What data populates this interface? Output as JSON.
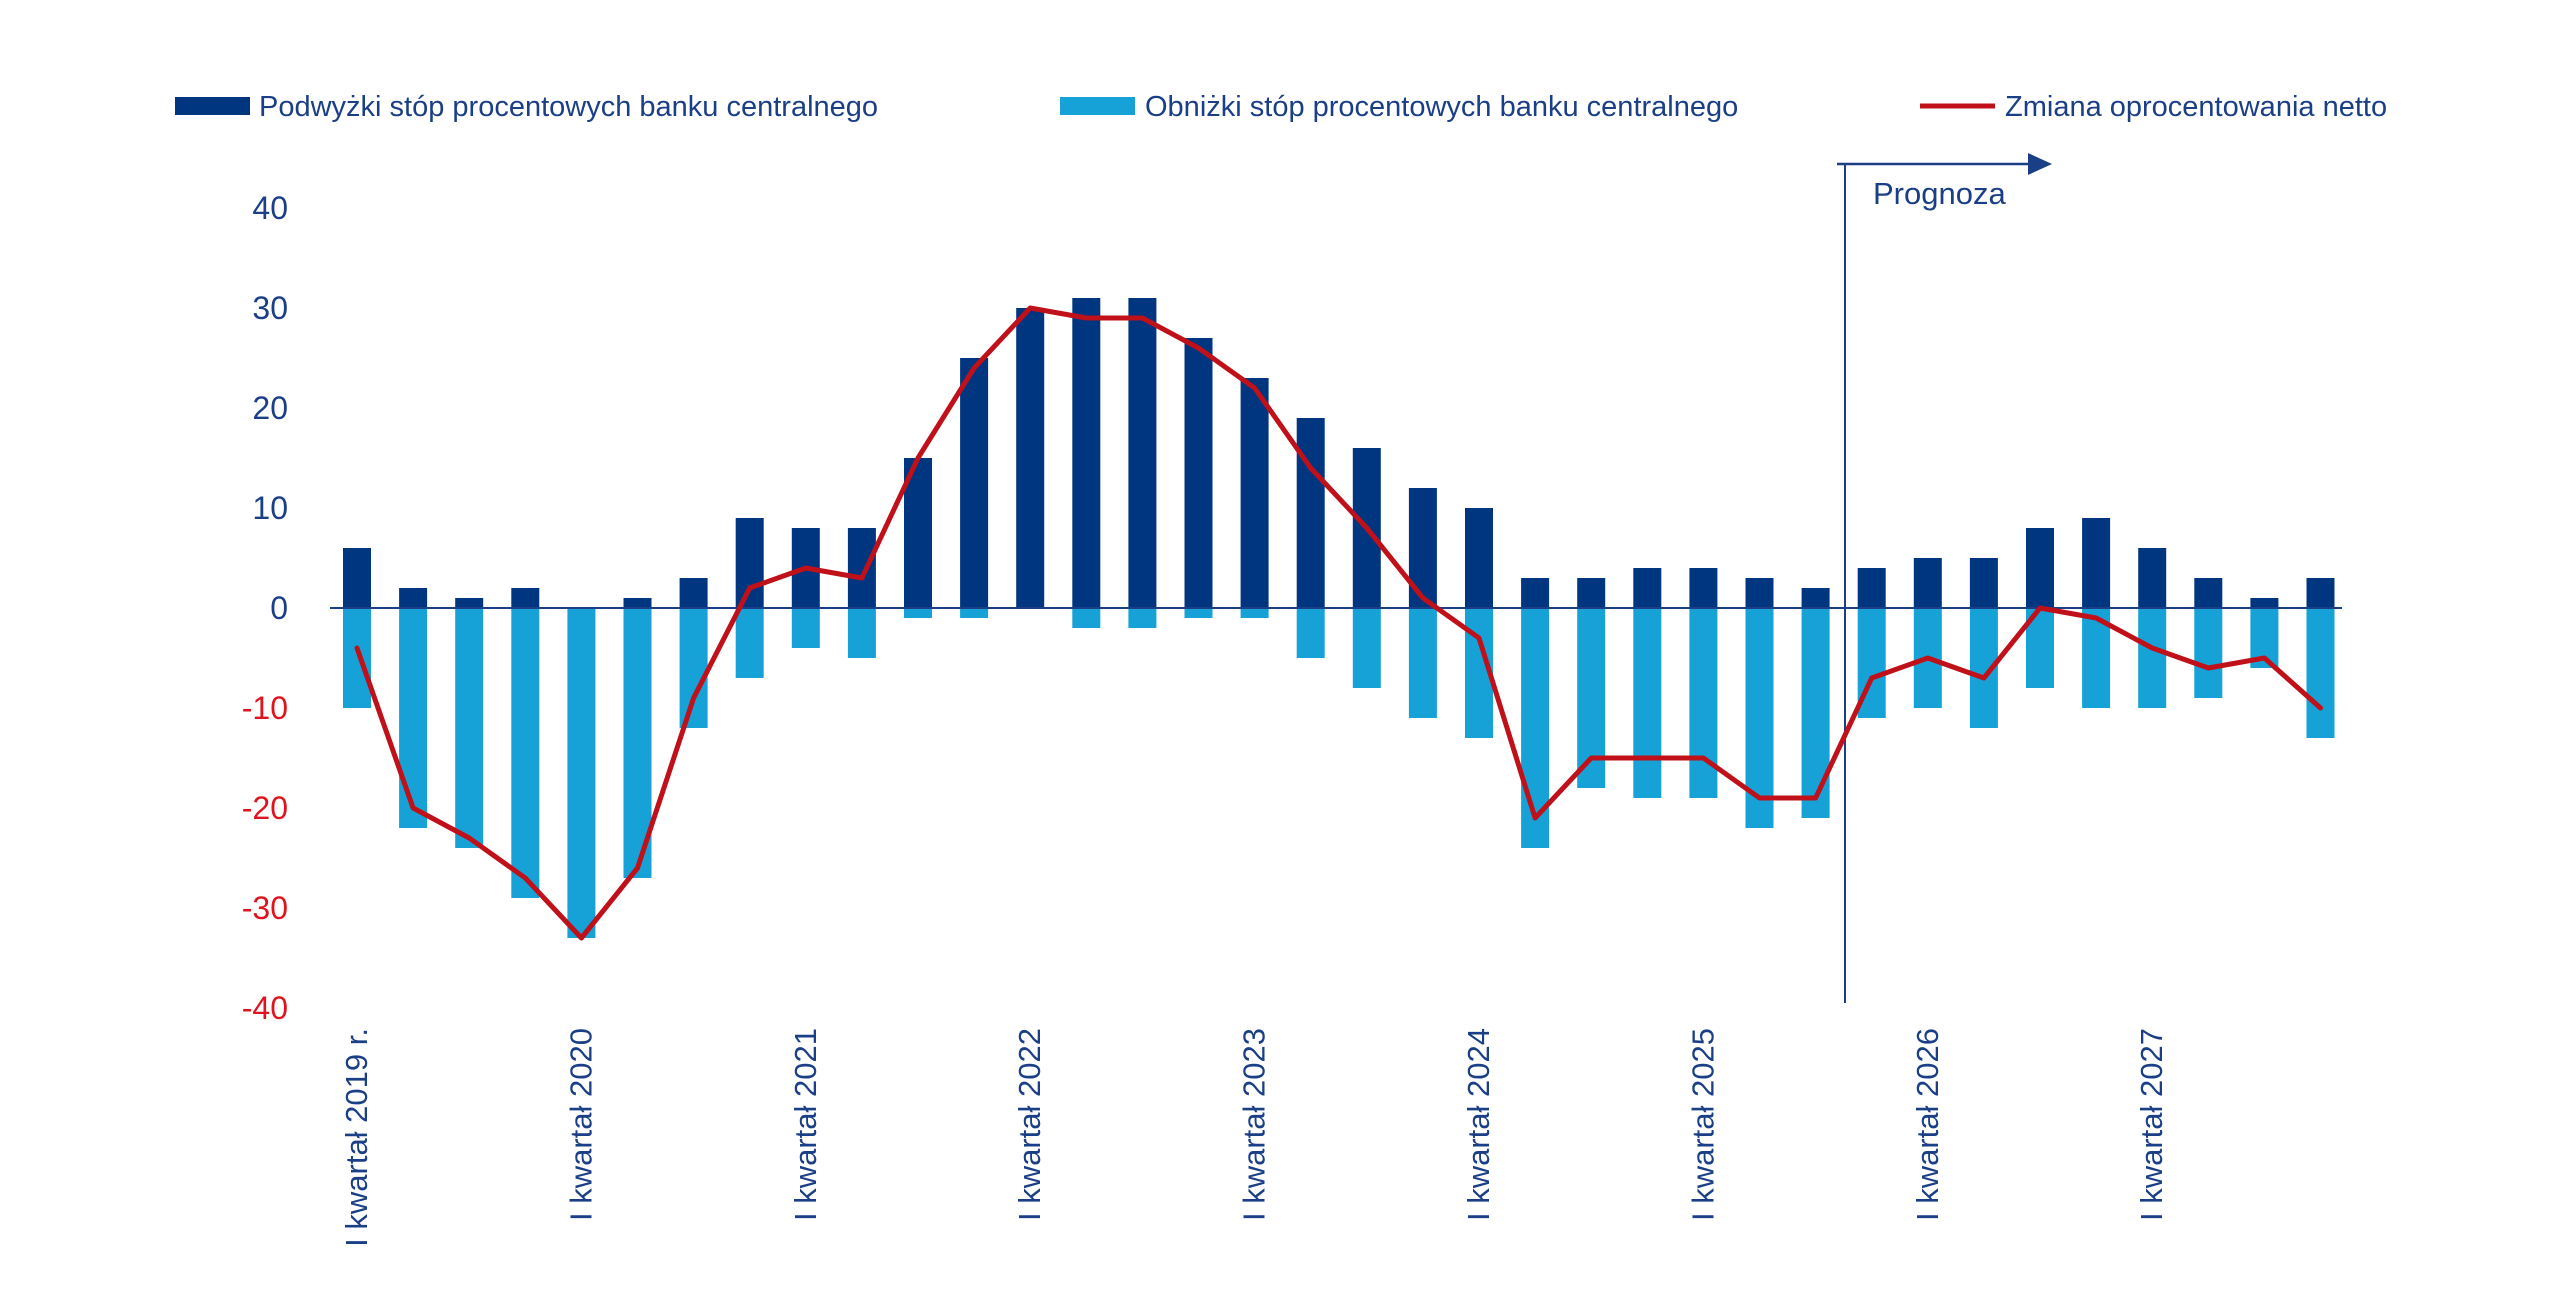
{
  "chart_data": {
    "type": "bar",
    "title": "",
    "xlabel": "",
    "ylabel": "",
    "ylim": [
      -40,
      40
    ],
    "yticks": [
      40,
      30,
      20,
      10,
      0,
      -10,
      -20,
      -30,
      -40
    ],
    "ytick_colors": {
      "positive": "#1b3f86",
      "negative": "#e0141e"
    },
    "legend_position": "top",
    "colors": {
      "raises": "#003580",
      "cuts": "#16a2d6",
      "net": "#c0101a",
      "text": "#1b3f86"
    },
    "x_tick_labels": [
      {
        "index": 0,
        "label": "I kwartał 2019 r."
      },
      {
        "index": 4,
        "label": "I kwartał 2020"
      },
      {
        "index": 8,
        "label": "I kwartał 2021"
      },
      {
        "index": 12,
        "label": "I kwartał 2022"
      },
      {
        "index": 16,
        "label": "I kwartał 2023"
      },
      {
        "index": 20,
        "label": "I kwartał 2024"
      },
      {
        "index": 24,
        "label": "I kwartał 2025"
      },
      {
        "index": 28,
        "label": "I kwartał 2026"
      },
      {
        "index": 32,
        "label": "I kwartał 2027"
      }
    ],
    "series": [
      {
        "name": "Podwyżki stóp procentowych banku centralnego",
        "kind": "bar",
        "values": [
          6,
          2,
          1,
          2,
          0,
          1,
          3,
          9,
          8,
          8,
          15,
          25,
          30,
          31,
          31,
          27,
          23,
          19,
          16,
          12,
          10,
          3,
          3,
          4,
          4,
          3,
          2,
          4,
          5,
          5,
          8,
          9,
          6,
          3,
          1,
          3
        ]
      },
      {
        "name": "Obniżki stóp procentowych banku centralnego",
        "kind": "bar",
        "values": [
          -10,
          -22,
          -24,
          -29,
          -33,
          -27,
          -12,
          -7,
          -4,
          -5,
          -1,
          -1,
          0,
          -2,
          -2,
          -1,
          -1,
          -5,
          -8,
          -11,
          -13,
          -24,
          -18,
          -19,
          -19,
          -22,
          -21,
          -11,
          -10,
          -12,
          -8,
          -10,
          -10,
          -9,
          -6,
          -13
        ]
      },
      {
        "name": "Zmiana oprocentowania netto",
        "kind": "line",
        "values": [
          -4,
          -20,
          -23,
          -27,
          -33,
          -26,
          -9,
          2,
          4,
          3,
          15,
          24,
          30,
          29,
          29,
          26,
          22,
          14,
          8,
          1,
          -3,
          -21,
          -15,
          -15,
          -15,
          -19,
          -19,
          -7,
          -5,
          -7,
          0,
          -1,
          -4,
          -6,
          -5,
          -10
        ]
      }
    ],
    "annotations": [
      {
        "text": "Prognoza",
        "from_index": 27,
        "note": "arrow"
      }
    ]
  }
}
